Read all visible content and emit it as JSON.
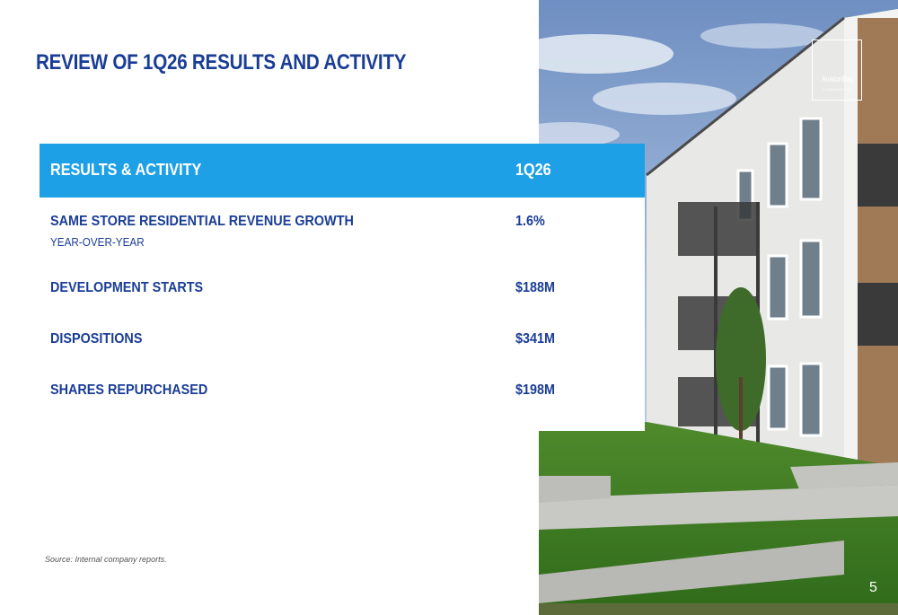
{
  "slide": {
    "title": "REVIEW OF 1Q26 RESULTS AND ACTIVITY",
    "source_note": "Source: Internal company reports.",
    "page_number": "5",
    "accent_color": "#1ea0e6",
    "title_color": "#1a3d96"
  },
  "table": {
    "header_label": "RESULTS & ACTIVITY",
    "header_period": "1Q26",
    "rows": [
      {
        "label": "SAME STORE RESIDENTIAL REVENUE GROWTH",
        "sublabel": "YEAR-OVER-YEAR",
        "value": "1.6%"
      },
      {
        "label": "DEVELOPMENT STARTS",
        "value": "$188M"
      },
      {
        "label": "DISPOSITIONS",
        "value": "$341M"
      },
      {
        "label": "SHARES REPURCHASED",
        "value": "$198M"
      }
    ]
  },
  "logo": {
    "name": "AvalonBay",
    "sub": "COMMUNITIES"
  }
}
